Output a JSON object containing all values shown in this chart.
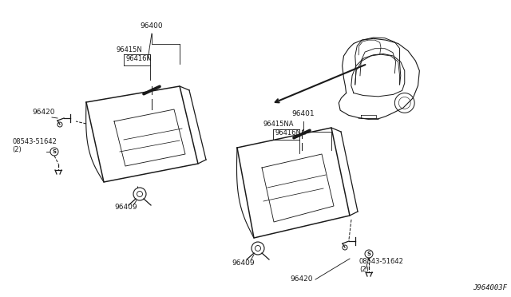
{
  "bg_color": "#ffffff",
  "line_color": "#1a1a1a",
  "text_color": "#1a1a1a",
  "fig_width": 6.4,
  "fig_height": 3.72,
  "dpi": 100,
  "diagram_code": "J964003F",
  "parts": {
    "left_visor_label": "96400",
    "right_visor_label": "96401",
    "left_sub1": "96415N",
    "left_sub2": "96416N",
    "right_sub1": "96415NA",
    "right_sub2": "96416NA",
    "clip_left": "96409",
    "clip_right": "96409",
    "mount_left": "96420",
    "mount_right": "96420",
    "bolt_left": "08543-51642\n(2)",
    "bolt_right": "08543-51642\n(2)"
  }
}
